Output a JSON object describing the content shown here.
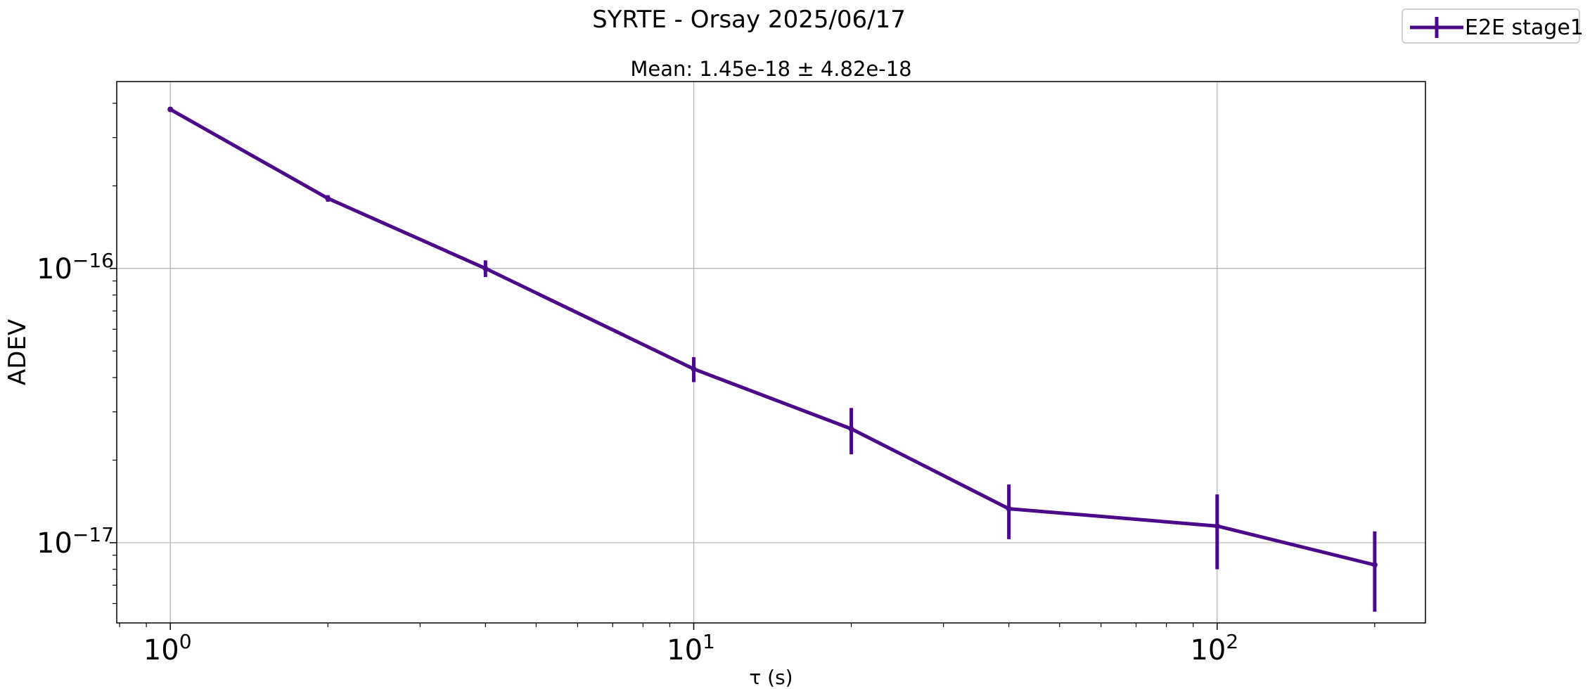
{
  "figure": {
    "suptitle": "SYRTE - Orsay 2025/06/17",
    "legend_label": "E2E stage1"
  },
  "chart_data": {
    "type": "line",
    "title": "Mean: 1.45e-18 ± 4.82e-18",
    "xlabel": "τ (s)",
    "ylabel": "ADEV",
    "xscale": "log",
    "yscale": "log",
    "xlim": [
      0.79,
      250
    ],
    "ylim": [
      5.1e-18,
      4.8e-16
    ],
    "grid": true,
    "legend_position": "top-right",
    "x_tick_labels": [
      {
        "value": 1,
        "base": "10",
        "exp": "0"
      },
      {
        "value": 10,
        "base": "10",
        "exp": "1"
      },
      {
        "value": 100,
        "base": "10",
        "exp": "2"
      }
    ],
    "y_tick_labels": [
      {
        "value": 1e-16,
        "base": "10",
        "exp": "−16"
      },
      {
        "value": 1e-17,
        "base": "10",
        "exp": "−17"
      }
    ],
    "series": [
      {
        "name": "E2E stage1",
        "color": "#4b0a8a",
        "x": [
          1,
          2,
          4,
          10,
          20,
          40,
          100,
          200
        ],
        "y": [
          3.8e-16,
          1.8e-16,
          1e-16,
          4.3e-17,
          2.6e-17,
          1.33e-17,
          1.15e-17,
          8.3e-18
        ],
        "yerr": [
          8e-18,
          5e-18,
          7e-18,
          4.5e-18,
          5e-18,
          3e-18,
          3.5e-18,
          2.7e-18
        ]
      }
    ]
  }
}
